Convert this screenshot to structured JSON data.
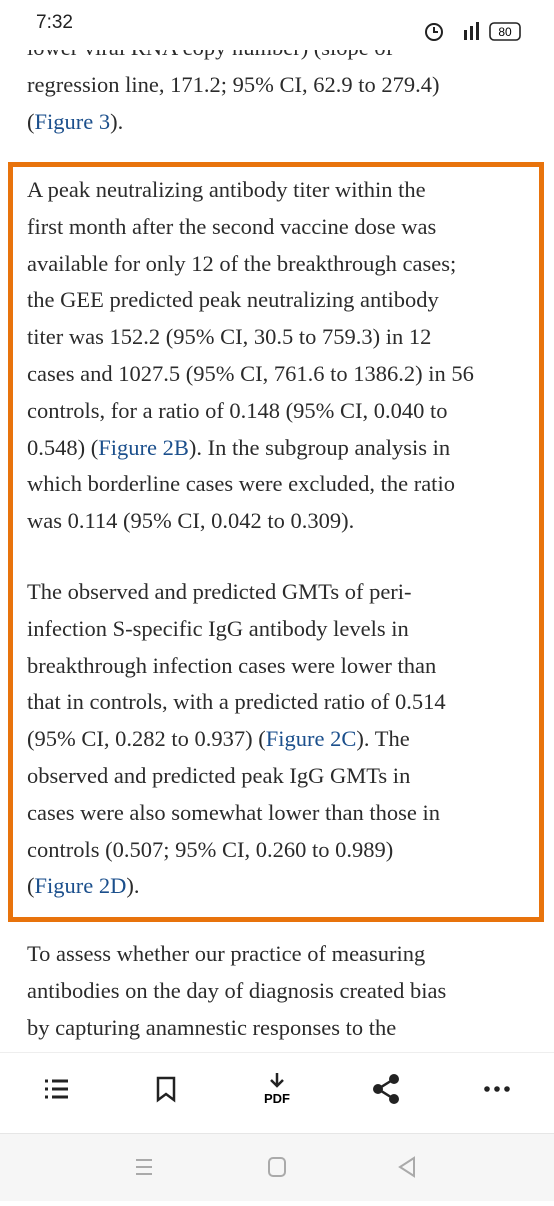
{
  "status_bar": {
    "time": "7:32",
    "battery": "80"
  },
  "article": {
    "paragraphs": [
      {
        "lines": [
          [
            "lower viral RNA copy number) (slope of"
          ],
          [
            "regression line, 171.2; 95% CI, 62.9 to 279.4)"
          ],
          [
            "(",
            {
              "link": "Figure 3"
            },
            ")."
          ]
        ]
      },
      {
        "lines": [
          [
            "A peak neutralizing antibody titer within the"
          ],
          [
            "first month after the second vaccine dose was"
          ],
          [
            "available for only 12 of the breakthrough cases;"
          ],
          [
            "the GEE predicted peak neutralizing antibody"
          ],
          [
            "titer was 152.2 (95% CI, 30.5 to 759.3) in 12"
          ],
          [
            "cases and 1027.5 (95% CI, 761.6 to 1386.2) in 56"
          ],
          [
            "controls, for a ratio of 0.148 (95% CI, 0.040 to"
          ],
          [
            "0.548) (",
            {
              "link": "Figure 2B"
            },
            "). In the subgroup analysis in"
          ],
          [
            "which borderline cases were excluded, the ratio"
          ],
          [
            "was 0.114 (95% CI, 0.042 to 0.309)."
          ]
        ]
      },
      {
        "lines": [
          [
            "The observed and predicted GMTs of peri-"
          ],
          [
            "infection S-specific IgG antibody levels in"
          ],
          [
            "breakthrough infection cases were lower than"
          ],
          [
            "that in controls, with a predicted ratio of 0.514"
          ],
          [
            "(95% CI, 0.282 to 0.937) (",
            {
              "link": "Figure 2C"
            },
            "). The"
          ],
          [
            "observed and predicted peak IgG GMTs in"
          ],
          [
            "cases were also somewhat lower than those in"
          ],
          [
            "controls (0.507; 95% CI, 0.260 to 0.989)"
          ],
          [
            "(",
            {
              "link": "Figure 2D"
            },
            ")."
          ]
        ]
      },
      {
        "lines": [
          [
            "To assess whether our practice of measuring"
          ],
          [
            "antibodies on the day of diagnosis created bias"
          ],
          [
            "by capturing anamnestic responses to the"
          ]
        ]
      }
    ]
  },
  "toolbar": {
    "pdf": "PDF"
  }
}
